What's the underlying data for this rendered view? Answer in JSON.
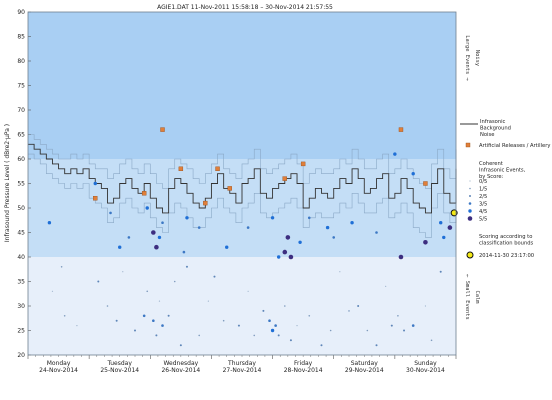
{
  "chart_data": {
    "type": "scatter",
    "title": "AGIE1.DAT   11-Nov-2011 15:58:18   –   30-Nov-2014 21:57:55",
    "ylabel": "Infrasound Pressure Level   ( dBre2·μPa )",
    "ylim": [
      20,
      90
    ],
    "yticks": [
      "20",
      "25",
      "30",
      "35",
      "40",
      "45",
      "50",
      "55",
      "60",
      "65",
      "70",
      "75",
      "80",
      "85",
      "90"
    ],
    "xlim": [
      0,
      7
    ],
    "day_labels": [
      {
        "day": "Monday",
        "date": "24-Nov-2014"
      },
      {
        "day": "Tuesday",
        "date": "25-Nov-2014"
      },
      {
        "day": "Wednesday",
        "date": "26-Nov-2014"
      },
      {
        "day": "Thursday",
        "date": "27-Nov-2014"
      },
      {
        "day": "Friday",
        "date": "28-Nov-2014"
      },
      {
        "day": "Saturday",
        "date": "29-Nov-2014"
      },
      {
        "day": "Sunday",
        "date": "30-Nov-2014"
      }
    ],
    "bands": [
      {
        "from": 60,
        "to": 90,
        "color": "#a9cff3"
      },
      {
        "from": 40,
        "to": 60,
        "color": "#c4def6"
      },
      {
        "from": 20,
        "to": 40,
        "color": "#e7effa"
      }
    ],
    "right_labels": {
      "large_events": "Large Events →",
      "noisy": "Noisy",
      "small_events": "← Small Events",
      "calm": "Calm"
    },
    "background_noise": {
      "name": "Infrasonic Background Noise",
      "color": "#333333",
      "x": [
        0.0,
        0.1,
        0.2,
        0.3,
        0.4,
        0.5,
        0.6,
        0.7,
        0.8,
        0.9,
        1.0,
        1.1,
        1.2,
        1.3,
        1.4,
        1.5,
        1.6,
        1.7,
        1.8,
        1.9,
        2.0,
        2.1,
        2.2,
        2.3,
        2.4,
        2.5,
        2.6,
        2.7,
        2.8,
        2.9,
        3.0,
        3.1,
        3.2,
        3.3,
        3.4,
        3.5,
        3.6,
        3.7,
        3.8,
        3.9,
        4.0,
        4.1,
        4.2,
        4.3,
        4.4,
        4.5,
        4.6,
        4.7,
        4.8,
        4.9,
        5.0,
        5.1,
        5.2,
        5.3,
        5.4,
        5.5,
        5.6,
        5.7,
        5.8,
        5.9,
        6.0,
        6.1,
        6.2,
        6.3,
        6.4,
        6.5,
        6.6,
        6.7,
        6.8,
        6.9,
        7.0
      ],
      "y": [
        63,
        62,
        61,
        60,
        59,
        58,
        57,
        58,
        57,
        58,
        56,
        55,
        54,
        51,
        52,
        55,
        56,
        54,
        53,
        55,
        52,
        50,
        49,
        54,
        56,
        55,
        53,
        51,
        50,
        52,
        55,
        57,
        54,
        53,
        51,
        55,
        56,
        58,
        53,
        52,
        54,
        55,
        56,
        57,
        55,
        50,
        52,
        54,
        53,
        52,
        54,
        56,
        55,
        58,
        56,
        53,
        54,
        56,
        57,
        52,
        53,
        56,
        54,
        51,
        50,
        49,
        55,
        58,
        53,
        51,
        58
      ]
    },
    "noise_envelope_upper": {
      "color": "#8aa8c6",
      "y": [
        65,
        64,
        63,
        62,
        61,
        60,
        60,
        61,
        60,
        61,
        59,
        58,
        58,
        56,
        57,
        59,
        60,
        58,
        57,
        59,
        57,
        55,
        54,
        58,
        60,
        59,
        58,
        56,
        55,
        57,
        59,
        61,
        58,
        57,
        56,
        59,
        60,
        62,
        58,
        57,
        58,
        59,
        60,
        61,
        59,
        55,
        57,
        58,
        57,
        57,
        58,
        60,
        59,
        62,
        60,
        58,
        58,
        60,
        61,
        57,
        58,
        60,
        58,
        56,
        55,
        54,
        59,
        62,
        58,
        56,
        62
      ]
    },
    "noise_envelope_lower": {
      "color": "#8aa8c6",
      "y": [
        61,
        60,
        59,
        57,
        56,
        55,
        54,
        55,
        54,
        55,
        52,
        51,
        50,
        47,
        48,
        51,
        52,
        50,
        49,
        51,
        48,
        46,
        45,
        49,
        51,
        50,
        48,
        46,
        46,
        48,
        50,
        52,
        50,
        49,
        47,
        50,
        51,
        53,
        49,
        48,
        49,
        50,
        51,
        52,
        50,
        46,
        48,
        49,
        48,
        48,
        49,
        51,
        50,
        53,
        51,
        49,
        49,
        51,
        52,
        48,
        49,
        51,
        49,
        46,
        45,
        44,
        50,
        53,
        49,
        47,
        53
      ]
    },
    "artificial_releases": {
      "name": "Artificial Releases / Artillery",
      "color": "#e07f3a",
      "points": [
        [
          1.1,
          52
        ],
        [
          1.9,
          53
        ],
        [
          2.2,
          66
        ],
        [
          2.5,
          58
        ],
        [
          2.9,
          51
        ],
        [
          3.1,
          58
        ],
        [
          3.3,
          54
        ],
        [
          4.2,
          56
        ],
        [
          4.5,
          59
        ],
        [
          6.1,
          66
        ],
        [
          6.5,
          55
        ]
      ]
    },
    "events_title": "Coherent Infrasonic Events, by Score:",
    "scores": [
      {
        "label": "0/5",
        "color": "#9fb4cc"
      },
      {
        "label": "1/5",
        "color": "#7f9bbd"
      },
      {
        "label": "2/5",
        "color": "#5f86b8"
      },
      {
        "label": "3/5",
        "color": "#3d78c4"
      },
      {
        "label": "4/5",
        "color": "#1f6fd6"
      },
      {
        "label": "5/5",
        "color": "#3d2e80"
      }
    ],
    "events": [
      {
        "x": 0.35,
        "y": 47,
        "s": 4
      },
      {
        "x": 1.1,
        "y": 55,
        "s": 4
      },
      {
        "x": 1.35,
        "y": 49,
        "s": 3
      },
      {
        "x": 1.5,
        "y": 42,
        "s": 4
      },
      {
        "x": 1.65,
        "y": 44,
        "s": 3
      },
      {
        "x": 1.95,
        "y": 50,
        "s": 4
      },
      {
        "x": 2.05,
        "y": 45,
        "s": 5
      },
      {
        "x": 2.1,
        "y": 42,
        "s": 5
      },
      {
        "x": 2.15,
        "y": 44,
        "s": 4
      },
      {
        "x": 2.2,
        "y": 47,
        "s": 3
      },
      {
        "x": 2.6,
        "y": 48,
        "s": 4
      },
      {
        "x": 2.55,
        "y": 41,
        "s": 3
      },
      {
        "x": 2.8,
        "y": 46,
        "s": 3
      },
      {
        "x": 3.25,
        "y": 42,
        "s": 4
      },
      {
        "x": 3.6,
        "y": 46,
        "s": 3
      },
      {
        "x": 4.0,
        "y": 48,
        "s": 4
      },
      {
        "x": 4.1,
        "y": 40,
        "s": 4
      },
      {
        "x": 4.2,
        "y": 41,
        "s": 5
      },
      {
        "x": 4.25,
        "y": 44,
        "s": 5
      },
      {
        "x": 4.3,
        "y": 40,
        "s": 5
      },
      {
        "x": 4.45,
        "y": 43,
        "s": 4
      },
      {
        "x": 4.6,
        "y": 48,
        "s": 3
      },
      {
        "x": 4.9,
        "y": 46,
        "s": 4
      },
      {
        "x": 5.0,
        "y": 44,
        "s": 3
      },
      {
        "x": 5.3,
        "y": 47,
        "s": 4
      },
      {
        "x": 5.7,
        "y": 45,
        "s": 3
      },
      {
        "x": 6.0,
        "y": 61,
        "s": 4
      },
      {
        "x": 6.1,
        "y": 40,
        "s": 5
      },
      {
        "x": 6.3,
        "y": 57,
        "s": 4
      },
      {
        "x": 6.5,
        "y": 43,
        "s": 5
      },
      {
        "x": 6.75,
        "y": 47,
        "s": 4
      },
      {
        "x": 6.8,
        "y": 44,
        "s": 4
      },
      {
        "x": 6.9,
        "y": 46,
        "s": 5
      },
      {
        "x": 1.15,
        "y": 35,
        "s": 2
      },
      {
        "x": 1.3,
        "y": 30,
        "s": 1
      },
      {
        "x": 1.45,
        "y": 27,
        "s": 2
      },
      {
        "x": 1.55,
        "y": 37,
        "s": 0
      },
      {
        "x": 1.75,
        "y": 25,
        "s": 2
      },
      {
        "x": 1.9,
        "y": 28,
        "s": 3
      },
      {
        "x": 1.95,
        "y": 33,
        "s": 1
      },
      {
        "x": 2.05,
        "y": 27,
        "s": 3
      },
      {
        "x": 2.1,
        "y": 24,
        "s": 2
      },
      {
        "x": 2.15,
        "y": 31,
        "s": 0
      },
      {
        "x": 2.2,
        "y": 26,
        "s": 3
      },
      {
        "x": 2.3,
        "y": 28,
        "s": 2
      },
      {
        "x": 2.4,
        "y": 35,
        "s": 1
      },
      {
        "x": 2.5,
        "y": 22,
        "s": 2
      },
      {
        "x": 2.6,
        "y": 38,
        "s": 2
      },
      {
        "x": 2.8,
        "y": 24,
        "s": 1
      },
      {
        "x": 2.95,
        "y": 31,
        "s": 0
      },
      {
        "x": 3.05,
        "y": 36,
        "s": 2
      },
      {
        "x": 3.2,
        "y": 27,
        "s": 1
      },
      {
        "x": 3.45,
        "y": 26,
        "s": 2
      },
      {
        "x": 3.6,
        "y": 33,
        "s": 0
      },
      {
        "x": 3.7,
        "y": 24,
        "s": 1
      },
      {
        "x": 3.85,
        "y": 29,
        "s": 2
      },
      {
        "x": 3.95,
        "y": 27,
        "s": 3
      },
      {
        "x": 4.0,
        "y": 25,
        "s": 4
      },
      {
        "x": 4.05,
        "y": 26,
        "s": 3
      },
      {
        "x": 4.1,
        "y": 24,
        "s": 2
      },
      {
        "x": 4.2,
        "y": 30,
        "s": 1
      },
      {
        "x": 4.3,
        "y": 23,
        "s": 2
      },
      {
        "x": 4.4,
        "y": 26,
        "s": 0
      },
      {
        "x": 4.6,
        "y": 28,
        "s": 1
      },
      {
        "x": 4.8,
        "y": 22,
        "s": 2
      },
      {
        "x": 4.95,
        "y": 25,
        "s": 1
      },
      {
        "x": 5.1,
        "y": 37,
        "s": 0
      },
      {
        "x": 5.25,
        "y": 29,
        "s": 1
      },
      {
        "x": 5.4,
        "y": 30,
        "s": 2
      },
      {
        "x": 5.55,
        "y": 25,
        "s": 1
      },
      {
        "x": 5.7,
        "y": 22,
        "s": 2
      },
      {
        "x": 5.85,
        "y": 34,
        "s": 0
      },
      {
        "x": 5.95,
        "y": 26,
        "s": 2
      },
      {
        "x": 6.05,
        "y": 28,
        "s": 1
      },
      {
        "x": 6.15,
        "y": 25,
        "s": 2
      },
      {
        "x": 6.3,
        "y": 26,
        "s": 3
      },
      {
        "x": 6.5,
        "y": 30,
        "s": 0
      },
      {
        "x": 6.6,
        "y": 23,
        "s": 1
      },
      {
        "x": 6.75,
        "y": 37,
        "s": 2
      },
      {
        "x": 0.4,
        "y": 33,
        "s": 0
      },
      {
        "x": 0.6,
        "y": 28,
        "s": 1
      },
      {
        "x": 0.8,
        "y": 26,
        "s": 0
      },
      {
        "x": 0.55,
        "y": 38,
        "s": 1
      }
    ],
    "scoring_note": "Scoring according to classification bounds",
    "current": {
      "label": "2014-11-30 23:17:00",
      "x": 6.97,
      "y": 49,
      "fill": "#f5ea16",
      "stroke": "#111111"
    },
    "legend_position": "right"
  }
}
